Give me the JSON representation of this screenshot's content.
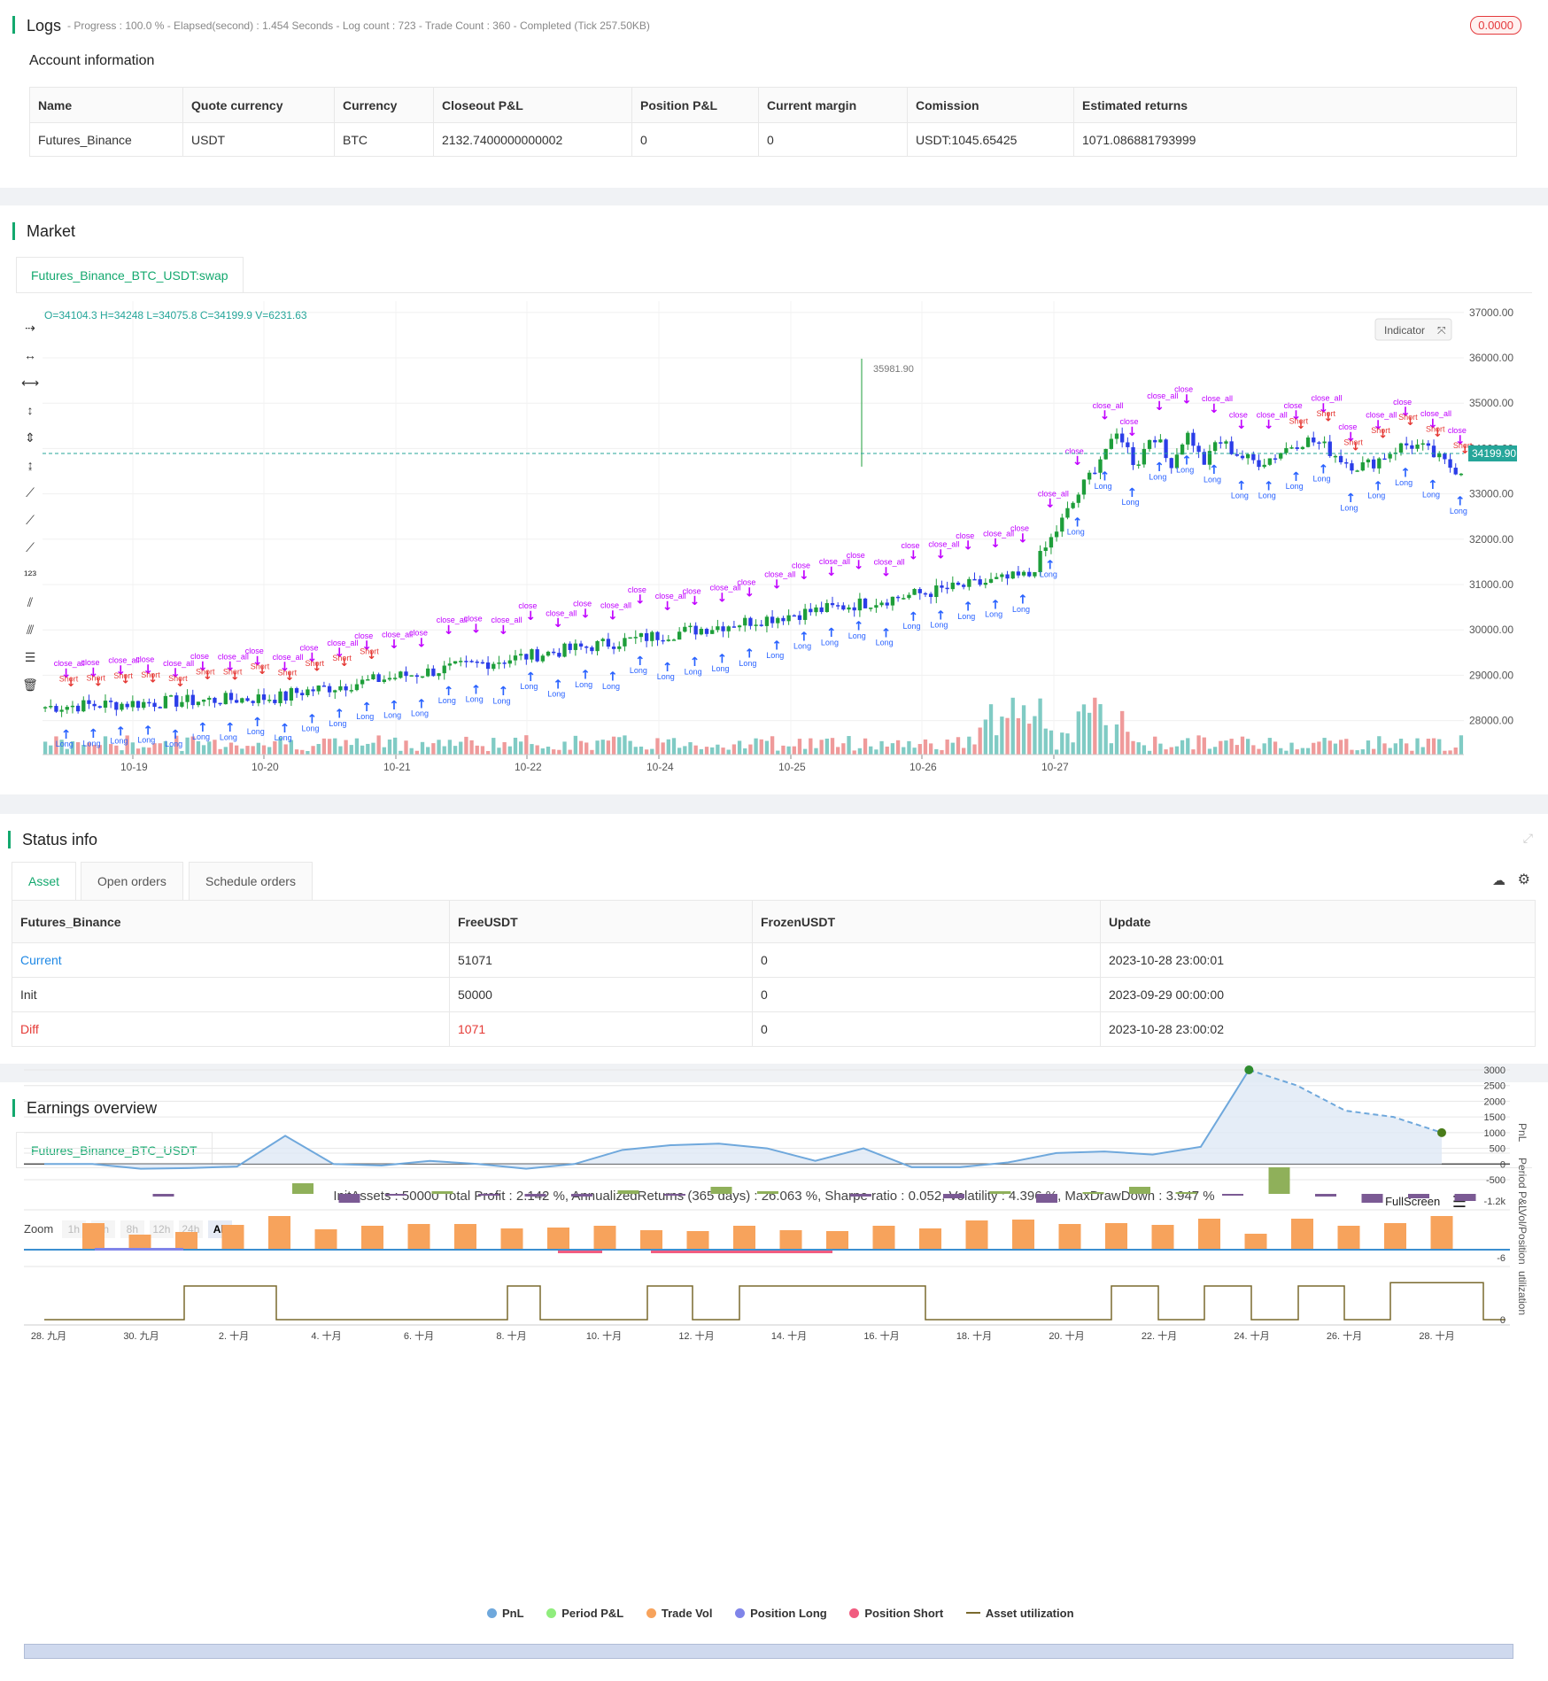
{
  "logs": {
    "title": "Logs",
    "meta": "- Progress : 100.0 % - Elapsed(second) : 1.454  Seconds - Log count : 723 - Trade Count : 360 - Completed (Tick 257.50KB)",
    "badge": "0.0000",
    "account_label": "Account information",
    "headers": [
      "Name",
      "Quote currency",
      "Currency",
      "Closeout P&L",
      "Position P&L",
      "Current margin",
      "Comission",
      "Estimated returns"
    ],
    "row": [
      "Futures_Binance",
      "USDT",
      "BTC",
      "2132.7400000000002",
      "0",
      "0",
      "USDT:1045.65425",
      "1071.086881793999"
    ]
  },
  "market": {
    "title": "Market",
    "tab": "Futures_Binance_BTC_USDT:swap",
    "ohlc": "O=34104.3 H=34248 L=34075.8 C=34199.9 V=6231.63",
    "indicator_btn": "Indicator",
    "last_price": "34199.90",
    "high_marker": "35981.90",
    "y_ticks": [
      "37000.00",
      "36000.00",
      "35000.00",
      "34000.00",
      "33000.00",
      "32000.00",
      "31000.00",
      "30000.00",
      "29000.00",
      "28000.00"
    ],
    "x_ticks": [
      "10-19",
      "10-20",
      "10-21",
      "10-22",
      "10-24",
      "10-25",
      "10-26",
      "10-27"
    ],
    "colors": {
      "up": "#26a69a",
      "down": "#ef5350",
      "accent": "#13a86e",
      "long": "#2962ff",
      "short": "#e53935",
      "close": "#c000ff"
    }
  },
  "status": {
    "title": "Status info",
    "tabs": [
      "Asset",
      "Open orders",
      "Schedule orders"
    ],
    "headers": [
      "Futures_Binance",
      "FreeUSDT",
      "FrozenUSDT",
      "Update"
    ],
    "rows": [
      [
        "Current",
        "51071",
        "0",
        "2023-10-28 23:00:01"
      ],
      [
        "Init",
        "50000",
        "0",
        "2023-09-29 00:00:00"
      ],
      [
        "Diff",
        "1071",
        "0",
        "2023-10-28 23:00:02"
      ]
    ]
  },
  "earnings": {
    "title": "Earnings overview",
    "tab": "Futures_Binance_BTC_USDT",
    "summary": "InitAssets : 50000 Total Profit : 2.142 %, AnnualizedReturns (365 days) : 26.063 %, Sharpe ratio : 0.052, Volatility : 4.396 %, MaxDrawDown : 3.947 %",
    "fullscreen": "FullScreen",
    "zoom_label": "Zoom",
    "zoom_buttons": [
      "1h",
      "3h",
      "8h",
      "12h",
      "24h",
      "All"
    ],
    "pnl_ticks": [
      "3000",
      "2500",
      "2000",
      "1500",
      "1000",
      "500",
      "0",
      "-500"
    ],
    "axis_titles": [
      "PnL",
      "Period P&L",
      "Vol/Position",
      "utilization"
    ],
    "period_tick": "-1.2k",
    "vol_tick": "-6",
    "util_tick": "0",
    "x_ticks": [
      "28. 九月",
      "30. 九月",
      "2. 十月",
      "4. 十月",
      "6. 十月",
      "8. 十月",
      "10. 十月",
      "12. 十月",
      "14. 十月",
      "16. 十月",
      "18. 十月",
      "20. 十月",
      "22. 十月",
      "24. 十月",
      "26. 十月",
      "28. 十月"
    ],
    "legend": [
      "PnL",
      "Period P&L",
      "Trade Vol",
      "Position Long",
      "Position Short",
      "Asset utilization"
    ],
    "legend_colors": [
      "#6fa8dc",
      "#90ed7d",
      "#f7a35c",
      "#8085e9",
      "#f15c80",
      "#7a6a2e"
    ]
  },
  "chart_data": {
    "type": "line",
    "title": "",
    "series": [
      {
        "name": "PnL",
        "values": [
          0,
          0,
          -150,
          -130,
          -80,
          900,
          0,
          -50,
          100,
          0,
          -150,
          0,
          450,
          600,
          650,
          500,
          100,
          500,
          -100,
          -100,
          50,
          350,
          400,
          300,
          550,
          3000,
          2500,
          1700,
          1500,
          1000
        ]
      }
    ],
    "ylim": [
      -500,
      3000
    ]
  }
}
